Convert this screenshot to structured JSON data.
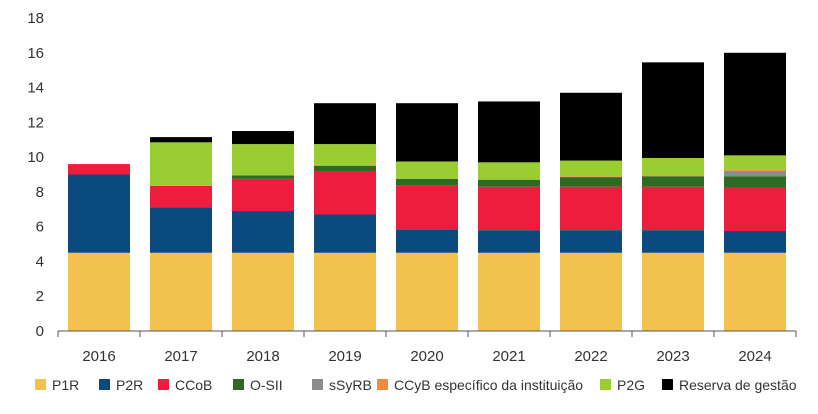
{
  "chart_data": {
    "type": "bar",
    "stacked": true,
    "title": "",
    "xlabel": "",
    "ylabel": "",
    "categories": [
      "2016",
      "2017",
      "2018",
      "2019",
      "2020",
      "2021",
      "2022",
      "2023",
      "2024"
    ],
    "ylim": [
      0,
      18
    ],
    "yticks": [
      0,
      2,
      4,
      6,
      8,
      10,
      12,
      14,
      16,
      18
    ],
    "grid": false,
    "legend_position": "bottom",
    "series": [
      {
        "name": "P1R",
        "color": "#F2C14E",
        "values": [
          4.5,
          4.5,
          4.5,
          4.5,
          4.5,
          4.5,
          4.5,
          4.5,
          4.5
        ]
      },
      {
        "name": "P2R",
        "color": "#0B4A7E",
        "values": [
          4.5,
          2.6,
          2.4,
          2.2,
          1.35,
          1.3,
          1.3,
          1.3,
          1.25
        ]
      },
      {
        "name": "CCoB",
        "color": "#EE1D3E",
        "values": [
          0.6,
          1.25,
          1.85,
          2.5,
          2.5,
          2.5,
          2.5,
          2.5,
          2.5
        ]
      },
      {
        "name": "O-SII",
        "color": "#2D6B22",
        "values": [
          0,
          0,
          0.2,
          0.3,
          0.4,
          0.4,
          0.55,
          0.6,
          0.65
        ]
      },
      {
        "name": "sSyRB",
        "color": "#8C8C8C",
        "values": [
          0,
          0,
          0,
          0,
          0,
          0,
          0,
          0,
          0.3
        ]
      },
      {
        "name": "CCyB específico da instituição",
        "color": "#F08A3C",
        "values": [
          0,
          0,
          0,
          0.05,
          0,
          0,
          0.05,
          0.05,
          0.05
        ]
      },
      {
        "name": "P2G",
        "color": "#9ACD32",
        "values": [
          0,
          2.5,
          1.8,
          1.2,
          1.0,
          1.0,
          0.9,
          1.0,
          0.85
        ]
      },
      {
        "name": "Reserva de gestão",
        "color": "#000000",
        "values": [
          0,
          0.3,
          0.75,
          2.35,
          3.35,
          3.5,
          3.9,
          5.5,
          5.9
        ]
      }
    ]
  }
}
